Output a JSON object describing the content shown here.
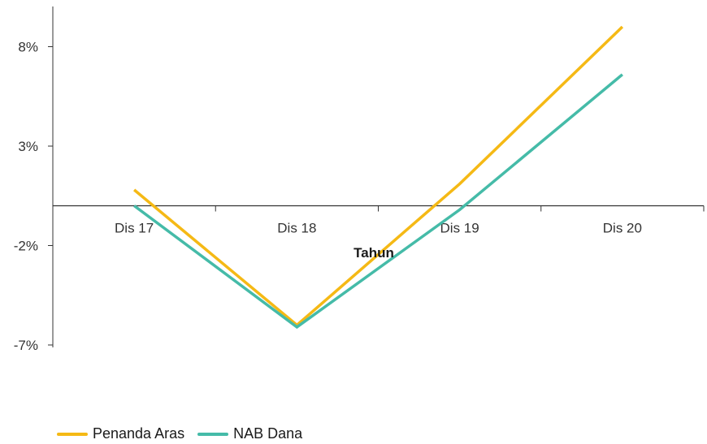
{
  "chart_data": {
    "type": "line",
    "categories": [
      "Dis 17",
      "Dis 18",
      "Dis 19",
      "Dis 20"
    ],
    "xlabel": "Tahun",
    "ylabel": "",
    "title": "",
    "ylim": [
      -7,
      8
    ],
    "yticks": [
      8,
      3,
      -2,
      -7
    ],
    "ytick_labels": [
      "8%",
      "3%",
      "-2%",
      "-7%"
    ],
    "grid": false,
    "legend_position": "bottom-left",
    "series": [
      {
        "name": "Penanda Aras",
        "color": "#F5B915",
        "values": [
          0.8,
          -6.0,
          1.1,
          9.0
        ]
      },
      {
        "name": "NAB Dana",
        "color": "#45BBA8",
        "values": [
          0.0,
          -6.1,
          -0.2,
          6.6
        ]
      }
    ]
  }
}
